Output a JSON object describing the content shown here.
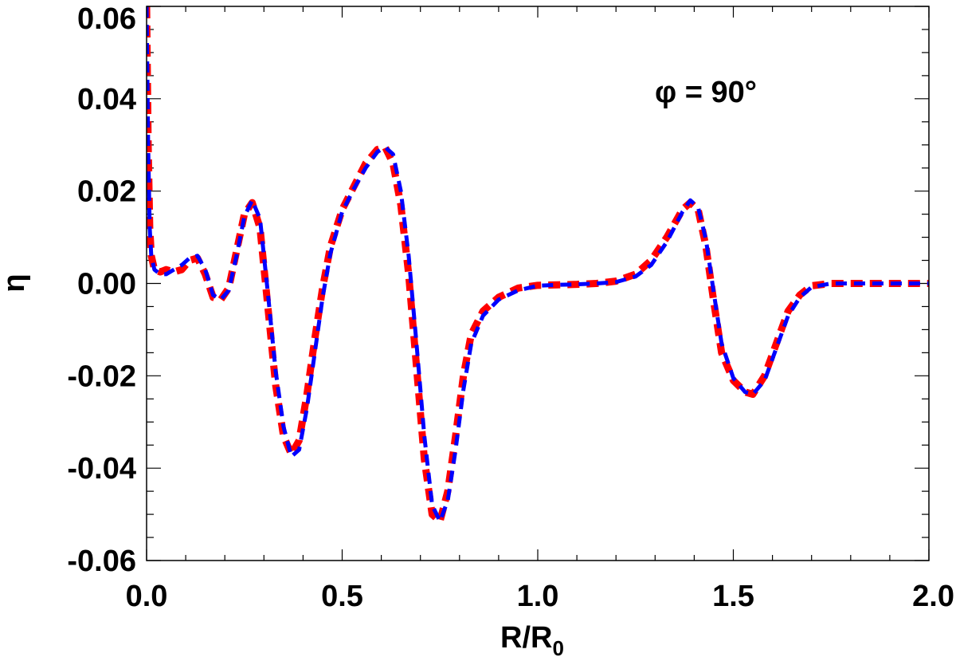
{
  "chart_data": {
    "type": "line",
    "xlabel": "R/R",
    "xlabel_subscript": "0",
    "ylabel": "η",
    "annotation": "φ = 90°",
    "xlim": [
      0.0,
      2.0
    ],
    "ylim": [
      -0.06,
      0.06
    ],
    "x_ticks": [
      "0.0",
      "0.5",
      "1.0",
      "1.5",
      "2.0"
    ],
    "y_ticks": [
      "-0.06",
      "-0.04",
      "-0.02",
      "0.00",
      "0.02",
      "0.04",
      "0.06"
    ],
    "grid": false,
    "series": [
      {
        "color": "#ff0000",
        "style": "dashed-thick",
        "points": [
          [
            0.0,
            0.06
          ],
          [
            0.004,
            0.03
          ],
          [
            0.008,
            0.012
          ],
          [
            0.012,
            0.006
          ],
          [
            0.02,
            0.003
          ],
          [
            0.035,
            0.0025
          ],
          [
            0.05,
            0.003
          ],
          [
            0.07,
            0.0025
          ],
          [
            0.09,
            0.003
          ],
          [
            0.11,
            0.005
          ],
          [
            0.13,
            0.0055
          ],
          [
            0.15,
            0.002
          ],
          [
            0.17,
            -0.003
          ],
          [
            0.19,
            -0.0035
          ],
          [
            0.21,
            -0.001
          ],
          [
            0.23,
            0.007
          ],
          [
            0.25,
            0.015
          ],
          [
            0.27,
            0.0175
          ],
          [
            0.29,
            0.012
          ],
          [
            0.31,
            -0.005
          ],
          [
            0.33,
            -0.022
          ],
          [
            0.35,
            -0.033
          ],
          [
            0.37,
            -0.037
          ],
          [
            0.39,
            -0.034
          ],
          [
            0.41,
            -0.024
          ],
          [
            0.43,
            -0.012
          ],
          [
            0.45,
            -0.001
          ],
          [
            0.47,
            0.008
          ],
          [
            0.5,
            0.016
          ],
          [
            0.53,
            0.021
          ],
          [
            0.56,
            0.026
          ],
          [
            0.59,
            0.029
          ],
          [
            0.61,
            0.0295
          ],
          [
            0.63,
            0.026
          ],
          [
            0.65,
            0.017
          ],
          [
            0.67,
            0.002
          ],
          [
            0.69,
            -0.018
          ],
          [
            0.71,
            -0.038
          ],
          [
            0.73,
            -0.05
          ],
          [
            0.75,
            -0.0515
          ],
          [
            0.77,
            -0.045
          ],
          [
            0.79,
            -0.033
          ],
          [
            0.81,
            -0.02
          ],
          [
            0.83,
            -0.011
          ],
          [
            0.86,
            -0.006
          ],
          [
            0.9,
            -0.003
          ],
          [
            0.95,
            -0.001
          ],
          [
            1.0,
            -0.0004
          ],
          [
            1.05,
            -0.0003
          ],
          [
            1.1,
            -0.0002
          ],
          [
            1.15,
            0.0
          ],
          [
            1.2,
            0.0005
          ],
          [
            1.25,
            0.002
          ],
          [
            1.29,
            0.005
          ],
          [
            1.33,
            0.01
          ],
          [
            1.37,
            0.016
          ],
          [
            1.39,
            0.0175
          ],
          [
            1.41,
            0.016
          ],
          [
            1.43,
            0.008
          ],
          [
            1.45,
            -0.004
          ],
          [
            1.47,
            -0.015
          ],
          [
            1.5,
            -0.021
          ],
          [
            1.53,
            -0.0235
          ],
          [
            1.55,
            -0.024
          ],
          [
            1.58,
            -0.02
          ],
          [
            1.61,
            -0.013
          ],
          [
            1.64,
            -0.006
          ],
          [
            1.67,
            -0.0025
          ],
          [
            1.7,
            -0.0005
          ],
          [
            1.75,
            0.0
          ],
          [
            1.85,
            0.0
          ],
          [
            2.0,
            0.0
          ]
        ]
      },
      {
        "color": "#0000ff",
        "style": "dashed",
        "points": [
          [
            0.0,
            0.06
          ],
          [
            0.004,
            0.03
          ],
          [
            0.008,
            0.012
          ],
          [
            0.012,
            0.006
          ],
          [
            0.02,
            0.003
          ],
          [
            0.035,
            0.002
          ],
          [
            0.05,
            0.002
          ],
          [
            0.07,
            0.003
          ],
          [
            0.09,
            0.004
          ],
          [
            0.11,
            0.0055
          ],
          [
            0.13,
            0.006
          ],
          [
            0.15,
            0.003
          ],
          [
            0.17,
            -0.0025
          ],
          [
            0.19,
            -0.0035
          ],
          [
            0.21,
            -0.0015
          ],
          [
            0.23,
            0.006
          ],
          [
            0.25,
            0.0145
          ],
          [
            0.27,
            0.018
          ],
          [
            0.29,
            0.014
          ],
          [
            0.31,
            -0.002
          ],
          [
            0.33,
            -0.019
          ],
          [
            0.35,
            -0.031
          ],
          [
            0.37,
            -0.0375
          ],
          [
            0.39,
            -0.036
          ],
          [
            0.41,
            -0.027
          ],
          [
            0.43,
            -0.015
          ],
          [
            0.45,
            -0.003
          ],
          [
            0.47,
            0.0065
          ],
          [
            0.5,
            0.0155
          ],
          [
            0.53,
            0.0205
          ],
          [
            0.56,
            0.025
          ],
          [
            0.59,
            0.0285
          ],
          [
            0.61,
            0.0295
          ],
          [
            0.63,
            0.028
          ],
          [
            0.65,
            0.02
          ],
          [
            0.67,
            0.006
          ],
          [
            0.69,
            -0.013
          ],
          [
            0.71,
            -0.033
          ],
          [
            0.73,
            -0.048
          ],
          [
            0.75,
            -0.0515
          ],
          [
            0.77,
            -0.047
          ],
          [
            0.79,
            -0.036
          ],
          [
            0.81,
            -0.023
          ],
          [
            0.83,
            -0.013
          ],
          [
            0.86,
            -0.007
          ],
          [
            0.9,
            -0.0035
          ],
          [
            0.95,
            -0.0015
          ],
          [
            1.0,
            -0.0005
          ],
          [
            1.05,
            -0.0003
          ],
          [
            1.1,
            -0.0002
          ],
          [
            1.15,
            0.0
          ],
          [
            1.2,
            0.0003
          ],
          [
            1.25,
            0.0015
          ],
          [
            1.29,
            0.004
          ],
          [
            1.33,
            0.009
          ],
          [
            1.37,
            0.0155
          ],
          [
            1.39,
            0.018
          ],
          [
            1.41,
            0.0165
          ],
          [
            1.43,
            0.0095
          ],
          [
            1.45,
            -0.002
          ],
          [
            1.47,
            -0.013
          ],
          [
            1.5,
            -0.0205
          ],
          [
            1.53,
            -0.0235
          ],
          [
            1.55,
            -0.024
          ],
          [
            1.58,
            -0.021
          ],
          [
            1.61,
            -0.014
          ],
          [
            1.64,
            -0.007
          ],
          [
            1.67,
            -0.003
          ],
          [
            1.7,
            -0.0008
          ],
          [
            1.75,
            0.0
          ],
          [
            1.85,
            0.0
          ],
          [
            2.0,
            0.0
          ]
        ]
      }
    ]
  }
}
